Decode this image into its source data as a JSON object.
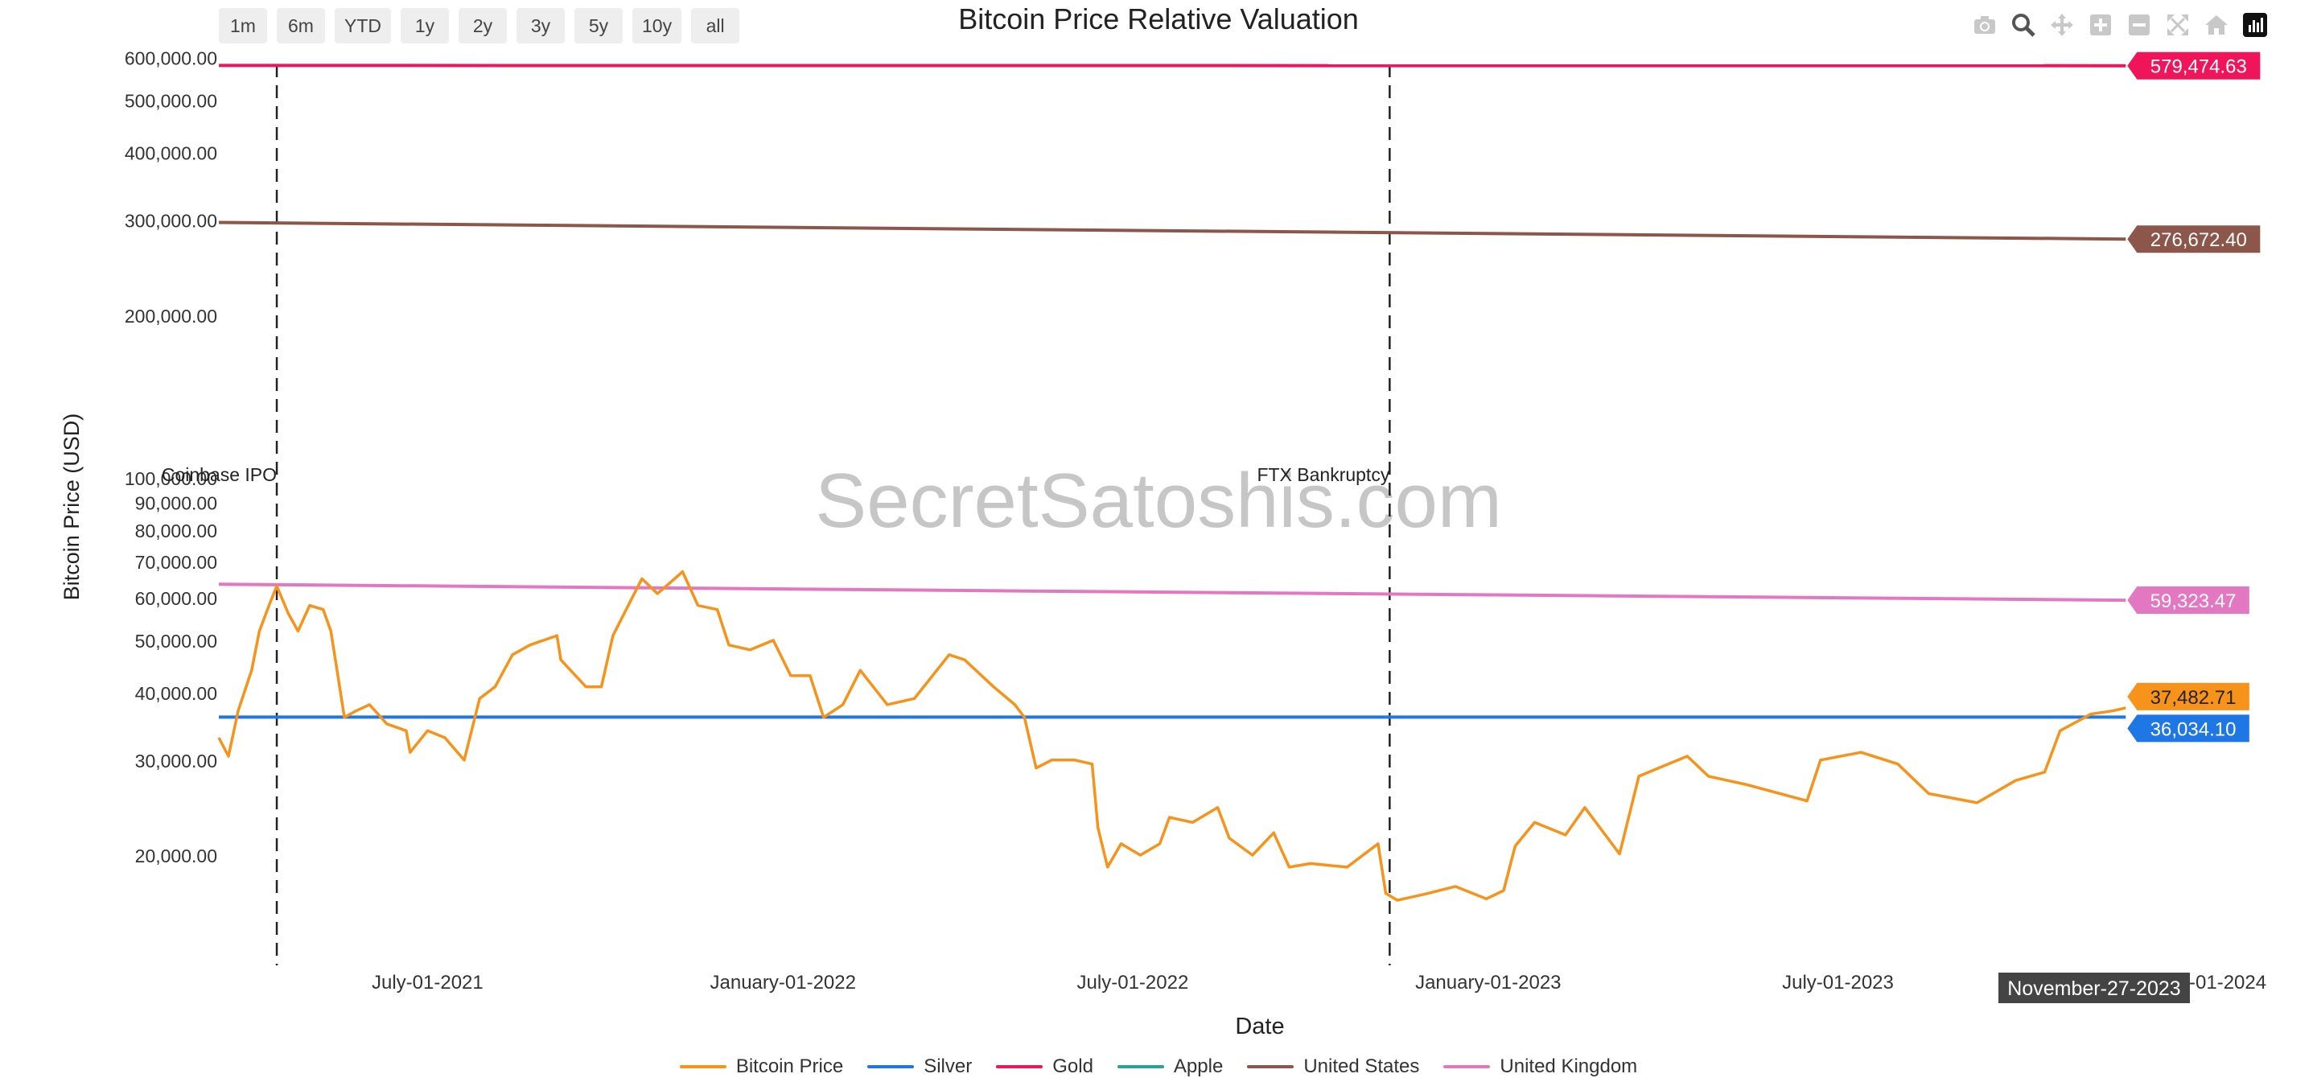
{
  "range_buttons": [
    "1m",
    "6m",
    "YTD",
    "1y",
    "2y",
    "3y",
    "5y",
    "10y",
    "all"
  ],
  "modebar": [
    "camera-icon",
    "zoom-icon",
    "pan-icon",
    "zoom-in-icon",
    "zoom-out-icon",
    "autoscale-icon",
    "reset-axes-icon",
    "plotly-logo-icon"
  ],
  "watermark": "SecretSatoshis.com",
  "hover_date": "November-27-2023",
  "chart_data": {
    "type": "line",
    "title": "Bitcoin Price Relative Valuation",
    "xlabel": "Date",
    "ylabel": "Bitcoin Price (USD)",
    "yscale": "log",
    "x_range": [
      "2021-03-15",
      "2024-01-15"
    ],
    "y_range": [
      12500,
      620000
    ],
    "x_tick_labels": [
      "July-01-2021",
      "January-01-2022",
      "July-01-2022",
      "January-01-2023",
      "July-01-2023",
      "January-01-2024"
    ],
    "x_tick_dates": [
      "2021-07-01",
      "2022-01-01",
      "2022-07-01",
      "2023-01-01",
      "2023-07-01",
      "2024-01-01"
    ],
    "y_tick_values": [
      20000,
      30000,
      40000,
      50000,
      60000,
      70000,
      80000,
      90000,
      100000,
      200000,
      300000,
      400000,
      500000,
      600000
    ],
    "y_tick_labels": [
      "20,000.00",
      "30,000.00",
      "40,000.00",
      "50,000.00",
      "60,000.00",
      "70,000.00",
      "80,000.00",
      "90,000.00",
      "100,000.00",
      "200,000.00",
      "300,000.00",
      "400,000.00",
      "500,000.00",
      "600,000.00"
    ],
    "grid": false,
    "legend_position": "bottom-center",
    "annotations": [
      {
        "date": "2021-04-14",
        "label": "Coinbase IPO"
      },
      {
        "date": "2022-11-11",
        "label": "FTX Bankruptcy"
      }
    ],
    "series": [
      {
        "name": "Bitcoin Price",
        "color": "#f7931a",
        "end_label": "37,482.71",
        "points": [
          [
            "2021-03-15",
            33000
          ],
          [
            "2021-03-20",
            30500
          ],
          [
            "2021-03-25",
            37000
          ],
          [
            "2021-04-01",
            44000
          ],
          [
            "2021-04-05",
            52000
          ],
          [
            "2021-04-10",
            58000
          ],
          [
            "2021-04-14",
            63000
          ],
          [
            "2021-04-20",
            56000
          ],
          [
            "2021-04-25",
            52000
          ],
          [
            "2021-05-01",
            58000
          ],
          [
            "2021-05-08",
            57000
          ],
          [
            "2021-05-12",
            52000
          ],
          [
            "2021-05-19",
            36000
          ],
          [
            "2021-05-25",
            37000
          ],
          [
            "2021-06-01",
            38000
          ],
          [
            "2021-06-10",
            35000
          ],
          [
            "2021-06-20",
            34000
          ],
          [
            "2021-06-22",
            31000
          ],
          [
            "2021-07-01",
            34000
          ],
          [
            "2021-07-10",
            33000
          ],
          [
            "2021-07-20",
            30000
          ],
          [
            "2021-07-28",
            39000
          ],
          [
            "2021-08-05",
            41000
          ],
          [
            "2021-08-14",
            47000
          ],
          [
            "2021-08-23",
            49000
          ],
          [
            "2021-09-06",
            51000
          ],
          [
            "2021-09-08",
            46000
          ],
          [
            "2021-09-21",
            41000
          ],
          [
            "2021-09-29",
            41000
          ],
          [
            "2021-10-05",
            51000
          ],
          [
            "2021-10-15",
            60000
          ],
          [
            "2021-10-20",
            65000
          ],
          [
            "2021-10-28",
            61000
          ],
          [
            "2021-11-08",
            66000
          ],
          [
            "2021-11-10",
            67000
          ],
          [
            "2021-11-18",
            58000
          ],
          [
            "2021-11-28",
            57000
          ],
          [
            "2021-12-04",
            49000
          ],
          [
            "2021-12-15",
            48000
          ],
          [
            "2021-12-27",
            50000
          ],
          [
            "2022-01-05",
            43000
          ],
          [
            "2022-01-15",
            43000
          ],
          [
            "2022-01-22",
            36000
          ],
          [
            "2022-02-01",
            38000
          ],
          [
            "2022-02-10",
            44000
          ],
          [
            "2022-02-24",
            38000
          ],
          [
            "2022-03-10",
            39000
          ],
          [
            "2022-03-28",
            47000
          ],
          [
            "2022-04-05",
            46000
          ],
          [
            "2022-04-20",
            41000
          ],
          [
            "2022-05-01",
            38000
          ],
          [
            "2022-05-06",
            36000
          ],
          [
            "2022-05-12",
            29000
          ],
          [
            "2022-05-20",
            30000
          ],
          [
            "2022-06-01",
            30000
          ],
          [
            "2022-06-10",
            29500
          ],
          [
            "2022-06-13",
            22500
          ],
          [
            "2022-06-18",
            19000
          ],
          [
            "2022-06-25",
            21000
          ],
          [
            "2022-07-05",
            20000
          ],
          [
            "2022-07-15",
            21000
          ],
          [
            "2022-07-20",
            23500
          ],
          [
            "2022-08-01",
            23000
          ],
          [
            "2022-08-14",
            24500
          ],
          [
            "2022-08-20",
            21500
          ],
          [
            "2022-09-01",
            20000
          ],
          [
            "2022-09-12",
            22000
          ],
          [
            "2022-09-20",
            19000
          ],
          [
            "2022-10-01",
            19300
          ],
          [
            "2022-10-20",
            19000
          ],
          [
            "2022-11-05",
            21000
          ],
          [
            "2022-11-09",
            17000
          ],
          [
            "2022-11-15",
            16500
          ],
          [
            "2022-12-01",
            17000
          ],
          [
            "2022-12-15",
            17500
          ],
          [
            "2022-12-31",
            16600
          ],
          [
            "2023-01-09",
            17200
          ],
          [
            "2023-01-15",
            20800
          ],
          [
            "2023-01-25",
            23000
          ],
          [
            "2023-02-10",
            21800
          ],
          [
            "2023-02-20",
            24500
          ],
          [
            "2023-03-10",
            20100
          ],
          [
            "2023-03-20",
            28000
          ],
          [
            "2023-04-14",
            30500
          ],
          [
            "2023-04-25",
            28000
          ],
          [
            "2023-05-15",
            27000
          ],
          [
            "2023-06-15",
            25200
          ],
          [
            "2023-06-22",
            30000
          ],
          [
            "2023-07-13",
            31000
          ],
          [
            "2023-08-01",
            29500
          ],
          [
            "2023-08-17",
            26000
          ],
          [
            "2023-09-11",
            25000
          ],
          [
            "2023-10-01",
            27500
          ],
          [
            "2023-10-16",
            28500
          ],
          [
            "2023-10-24",
            34000
          ],
          [
            "2023-11-09",
            36500
          ],
          [
            "2023-11-20",
            37000
          ],
          [
            "2023-11-27",
            37482.71
          ]
        ]
      },
      {
        "name": "Silver",
        "color": "#1f77e5",
        "end_label": "36,034.10",
        "points": [
          [
            "2021-03-15",
            36034.1
          ],
          [
            "2023-11-27",
            36034.1
          ]
        ]
      },
      {
        "name": "Gold",
        "color": "#f0145a",
        "end_label": "579,474.63",
        "points": [
          [
            "2021-03-15",
            580000
          ],
          [
            "2023-11-27",
            579474.63
          ]
        ]
      },
      {
        "name": "Apple",
        "color": "#2aa198",
        "end_label": "",
        "points": []
      },
      {
        "name": "United States",
        "color": "#8c564b",
        "end_label": "276,672.40",
        "points": [
          [
            "2021-03-15",
            297000
          ],
          [
            "2023-11-27",
            276672.4
          ]
        ]
      },
      {
        "name": "United Kingdom",
        "color": "#e377c2",
        "end_label": "59,323.47",
        "points": [
          [
            "2021-03-15",
            63500
          ],
          [
            "2023-11-27",
            59323.47
          ]
        ]
      }
    ]
  }
}
